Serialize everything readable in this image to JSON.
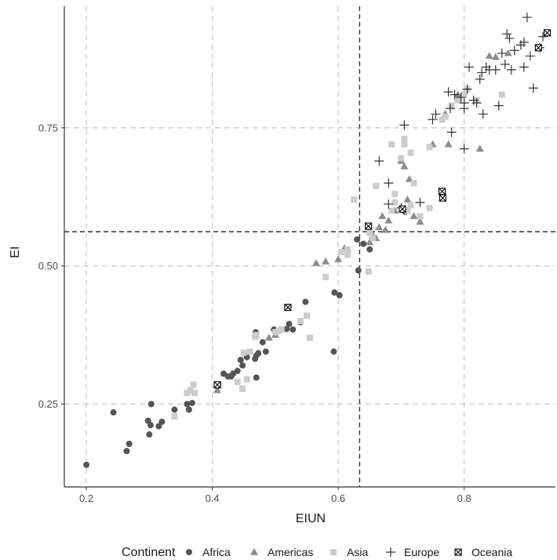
{
  "chart_data": {
    "type": "scatter",
    "xlabel": "EIUN",
    "ylabel": "EI",
    "xlim": [
      0.165,
      0.945
    ],
    "ylim": [
      0.1,
      0.97
    ],
    "x_ticks": [
      {
        "value": 0.2,
        "label": "0.2"
      },
      {
        "value": 0.4,
        "label": "0.4"
      },
      {
        "value": 0.6,
        "label": "0.6"
      },
      {
        "value": 0.8,
        "label": "0.8"
      }
    ],
    "y_ticks": [
      {
        "value": 0.25,
        "label": "0.25"
      },
      {
        "value": 0.5,
        "label": "0.50"
      },
      {
        "value": 0.75,
        "label": "0.75"
      }
    ],
    "grid": true,
    "reference_lines": {
      "x": 0.634,
      "y": 0.562
    },
    "legend": {
      "title": "Continent",
      "position": "bottom"
    },
    "series": [
      {
        "name": "Africa",
        "shape": "circle",
        "color": "#555555",
        "points": [
          [
            0.2,
            0.14
          ],
          [
            0.243,
            0.235
          ],
          [
            0.264,
            0.165
          ],
          [
            0.268,
            0.178
          ],
          [
            0.298,
            0.22
          ],
          [
            0.3,
            0.195
          ],
          [
            0.302,
            0.212
          ],
          [
            0.303,
            0.25
          ],
          [
            0.315,
            0.21
          ],
          [
            0.32,
            0.218
          ],
          [
            0.34,
            0.24
          ],
          [
            0.36,
            0.25
          ],
          [
            0.363,
            0.24
          ],
          [
            0.368,
            0.252
          ],
          [
            0.408,
            0.282
          ],
          [
            0.418,
            0.305
          ],
          [
            0.425,
            0.3
          ],
          [
            0.43,
            0.3
          ],
          [
            0.433,
            0.305
          ],
          [
            0.44,
            0.31
          ],
          [
            0.445,
            0.33
          ],
          [
            0.448,
            0.32
          ],
          [
            0.455,
            0.335
          ],
          [
            0.468,
            0.332
          ],
          [
            0.469,
            0.38
          ],
          [
            0.47,
            0.338
          ],
          [
            0.47,
            0.298
          ],
          [
            0.473,
            0.342
          ],
          [
            0.48,
            0.362
          ],
          [
            0.485,
            0.345
          ],
          [
            0.498,
            0.385
          ],
          [
            0.51,
            0.385
          ],
          [
            0.518,
            0.386
          ],
          [
            0.522,
            0.395
          ],
          [
            0.528,
            0.385
          ],
          [
            0.54,
            0.398
          ],
          [
            0.548,
            0.435
          ],
          [
            0.593,
            0.345
          ],
          [
            0.594,
            0.452
          ],
          [
            0.602,
            0.447
          ],
          [
            0.63,
            0.548
          ],
          [
            0.632,
            0.492
          ],
          [
            0.64,
            0.54
          ],
          [
            0.65,
            0.53
          ],
          [
            0.706,
            0.598
          ]
        ]
      },
      {
        "name": "Americas",
        "shape": "triangle",
        "color": "#8c8c8c",
        "points": [
          [
            0.408,
            0.275
          ],
          [
            0.49,
            0.37
          ],
          [
            0.5,
            0.375
          ],
          [
            0.565,
            0.505
          ],
          [
            0.58,
            0.508
          ],
          [
            0.6,
            0.512
          ],
          [
            0.61,
            0.532
          ],
          [
            0.65,
            0.543
          ],
          [
            0.655,
            0.555
          ],
          [
            0.66,
            0.55
          ],
          [
            0.665,
            0.57
          ],
          [
            0.67,
            0.59
          ],
          [
            0.675,
            0.565
          ],
          [
            0.68,
            0.582
          ],
          [
            0.69,
            0.6
          ],
          [
            0.7,
            0.69
          ],
          [
            0.705,
            0.68
          ],
          [
            0.71,
            0.62
          ],
          [
            0.713,
            0.657
          ],
          [
            0.72,
            0.59
          ],
          [
            0.73,
            0.58
          ],
          [
            0.75,
            0.72
          ],
          [
            0.77,
            0.775
          ],
          [
            0.775,
            0.72
          ],
          [
            0.79,
            0.81
          ],
          [
            0.825,
            0.712
          ],
          [
            0.84,
            0.88
          ],
          [
            0.85,
            0.878
          ],
          [
            0.87,
            0.885
          ]
        ]
      },
      {
        "name": "Asia",
        "shape": "square",
        "color": "#cccccc",
        "points": [
          [
            0.34,
            0.228
          ],
          [
            0.36,
            0.27
          ],
          [
            0.365,
            0.275
          ],
          [
            0.37,
            0.285
          ],
          [
            0.372,
            0.27
          ],
          [
            0.41,
            0.285
          ],
          [
            0.44,
            0.29
          ],
          [
            0.448,
            0.278
          ],
          [
            0.45,
            0.343
          ],
          [
            0.455,
            0.295
          ],
          [
            0.46,
            0.345
          ],
          [
            0.468,
            0.372
          ],
          [
            0.47,
            0.375
          ],
          [
            0.5,
            0.38
          ],
          [
            0.505,
            0.382
          ],
          [
            0.51,
            0.385
          ],
          [
            0.54,
            0.4
          ],
          [
            0.55,
            0.41
          ],
          [
            0.555,
            0.37
          ],
          [
            0.58,
            0.48
          ],
          [
            0.605,
            0.525
          ],
          [
            0.615,
            0.52
          ],
          [
            0.615,
            0.53
          ],
          [
            0.625,
            0.62
          ],
          [
            0.648,
            0.49
          ],
          [
            0.65,
            0.56
          ],
          [
            0.655,
            0.55
          ],
          [
            0.66,
            0.645
          ],
          [
            0.685,
            0.6
          ],
          [
            0.685,
            0.72
          ],
          [
            0.69,
            0.63
          ],
          [
            0.69,
            0.615
          ],
          [
            0.7,
            0.695
          ],
          [
            0.705,
            0.72
          ],
          [
            0.705,
            0.73
          ],
          [
            0.71,
            0.6
          ],
          [
            0.715,
            0.705
          ],
          [
            0.715,
            0.61
          ],
          [
            0.72,
            0.65
          ],
          [
            0.73,
            0.59
          ],
          [
            0.745,
            0.715
          ],
          [
            0.745,
            0.605
          ],
          [
            0.765,
            0.765
          ],
          [
            0.77,
            0.77
          ],
          [
            0.78,
            0.79
          ],
          [
            0.79,
            0.8
          ],
          [
            0.8,
            0.81
          ],
          [
            0.805,
            0.82
          ],
          [
            0.82,
            0.8
          ],
          [
            0.86,
            0.81
          ]
        ]
      },
      {
        "name": "Europe",
        "shape": "plus",
        "color": "#333333",
        "points": [
          [
            0.665,
            0.69
          ],
          [
            0.68,
            0.65
          ],
          [
            0.68,
            0.612
          ],
          [
            0.7,
            0.605
          ],
          [
            0.705,
            0.755
          ],
          [
            0.73,
            0.615
          ],
          [
            0.75,
            0.765
          ],
          [
            0.755,
            0.775
          ],
          [
            0.775,
            0.815
          ],
          [
            0.778,
            0.785
          ],
          [
            0.78,
            0.742
          ],
          [
            0.785,
            0.81
          ],
          [
            0.795,
            0.805
          ],
          [
            0.8,
            0.785
          ],
          [
            0.8,
            0.795
          ],
          [
            0.8,
            0.712
          ],
          [
            0.805,
            0.82
          ],
          [
            0.808,
            0.86
          ],
          [
            0.815,
            0.8
          ],
          [
            0.82,
            0.795
          ],
          [
            0.825,
            0.838
          ],
          [
            0.828,
            0.85
          ],
          [
            0.83,
            0.775
          ],
          [
            0.835,
            0.86
          ],
          [
            0.84,
            0.855
          ],
          [
            0.85,
            0.855
          ],
          [
            0.855,
            0.79
          ],
          [
            0.86,
            0.885
          ],
          [
            0.865,
            0.865
          ],
          [
            0.868,
            0.92
          ],
          [
            0.872,
            0.912
          ],
          [
            0.875,
            0.855
          ],
          [
            0.88,
            0.89
          ],
          [
            0.89,
            0.9
          ],
          [
            0.895,
            0.86
          ],
          [
            0.895,
            0.905
          ],
          [
            0.9,
            0.95
          ],
          [
            0.905,
            0.88
          ],
          [
            0.91,
            0.822
          ],
          [
            0.92,
            0.895
          ],
          [
            0.925,
            0.915
          ]
        ]
      },
      {
        "name": "Oceania",
        "shape": "boxcross",
        "color": "#000000",
        "points": [
          [
            0.408,
            0.285
          ],
          [
            0.52,
            0.425
          ],
          [
            0.648,
            0.572
          ],
          [
            0.702,
            0.603
          ],
          [
            0.765,
            0.635
          ],
          [
            0.766,
            0.623
          ],
          [
            0.918,
            0.895
          ],
          [
            0.932,
            0.922
          ]
        ]
      }
    ]
  }
}
